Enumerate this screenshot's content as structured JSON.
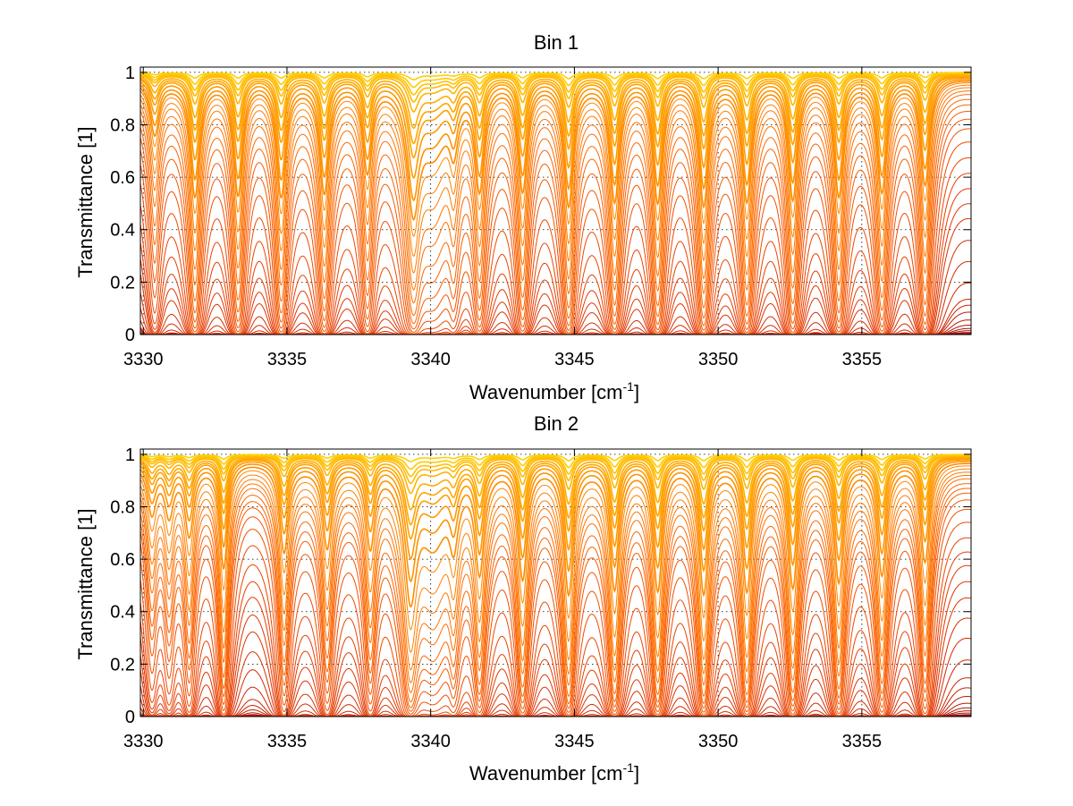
{
  "chart_data": [
    {
      "type": "line",
      "title": "Bin 1",
      "xlabel": "Wavenumber [cm",
      "xlabel_sup": "-1",
      "xlabel_end": "]",
      "ylabel": "Transmittance [1]",
      "xlim": [
        3329.9,
        3358.8
      ],
      "ylim": [
        0,
        1.02
      ],
      "xticks": [
        3330,
        3335,
        3340,
        3345,
        3350,
        3355
      ],
      "xtick_labels": [
        "3330",
        "3335",
        "3340",
        "3345",
        "3350",
        "3355"
      ],
      "yticks": [
        0,
        0.2,
        0.4,
        0.6,
        0.8,
        1
      ],
      "ytick_labels": [
        "0",
        "0.2",
        "0.4",
        "0.6",
        "0.8",
        "1"
      ],
      "grid": true,
      "colormap": [
        "#8b0000",
        "#c81e00",
        "#e83c00",
        "#ff6a00",
        "#ff9a00",
        "#ffd000"
      ],
      "n_series": 40,
      "baseline_levels": [
        0.005,
        0.015,
        0.035,
        0.07,
        0.14,
        0.19,
        0.35,
        0.5,
        0.6,
        0.7,
        0.8,
        0.86,
        0.9,
        0.93,
        0.95,
        0.965,
        0.975,
        0.985,
        0.99,
        0.995,
        0.997,
        0.999
      ],
      "absorption_lines": [
        {
          "x": 3330.4,
          "depth": 0.35,
          "width": 0.18
        },
        {
          "x": 3331.8,
          "depth": 0.9,
          "width": 0.17
        },
        {
          "x": 3333.3,
          "depth": 0.9,
          "width": 0.17
        },
        {
          "x": 3334.8,
          "depth": 0.9,
          "width": 0.17
        },
        {
          "x": 3336.3,
          "depth": 0.85,
          "width": 0.17
        },
        {
          "x": 3337.8,
          "depth": 0.65,
          "width": 0.17
        },
        {
          "x": 3339.4,
          "depth": 1.0,
          "width": 0.22
        },
        {
          "x": 3340.1,
          "depth": 0.45,
          "width": 0.55
        },
        {
          "x": 3340.8,
          "depth": 0.35,
          "width": 0.17
        },
        {
          "x": 3341.7,
          "depth": 0.8,
          "width": 0.17
        },
        {
          "x": 3343.2,
          "depth": 0.85,
          "width": 0.17
        },
        {
          "x": 3344.8,
          "depth": 1.0,
          "width": 0.17
        },
        {
          "x": 3346.4,
          "depth": 0.95,
          "width": 0.17
        },
        {
          "x": 3347.9,
          "depth": 0.98,
          "width": 0.17
        },
        {
          "x": 3349.5,
          "depth": 1.0,
          "width": 0.17
        },
        {
          "x": 3351.0,
          "depth": 0.95,
          "width": 0.17
        },
        {
          "x": 3352.6,
          "depth": 0.95,
          "width": 0.17
        },
        {
          "x": 3354.2,
          "depth": 0.9,
          "width": 0.17
        },
        {
          "x": 3355.7,
          "depth": 0.85,
          "width": 0.17
        },
        {
          "x": 3357.2,
          "depth": 0.8,
          "width": 0.17
        }
      ]
    },
    {
      "type": "line",
      "title": "Bin 2",
      "xlabel": "Wavenumber [cm",
      "xlabel_sup": "-1",
      "xlabel_end": "]",
      "ylabel": "Transmittance [1]",
      "xlim": [
        3329.9,
        3358.8
      ],
      "ylim": [
        0,
        1.02
      ],
      "xticks": [
        3330,
        3335,
        3340,
        3345,
        3350,
        3355
      ],
      "xtick_labels": [
        "3330",
        "3335",
        "3340",
        "3345",
        "3350",
        "3355"
      ],
      "yticks": [
        0,
        0.2,
        0.4,
        0.6,
        0.8,
        1
      ],
      "ytick_labels": [
        "0",
        "0.2",
        "0.4",
        "0.6",
        "0.8",
        "1"
      ],
      "grid": true,
      "colormap": [
        "#8b0000",
        "#c81e00",
        "#e83c00",
        "#ff6a00",
        "#ff9a00",
        "#ffd000"
      ],
      "n_series": 40,
      "baseline_levels": [
        0.005,
        0.012,
        0.03,
        0.06,
        0.12,
        0.2,
        0.36,
        0.5,
        0.61,
        0.7,
        0.8,
        0.86,
        0.89,
        0.92,
        0.94,
        0.96,
        0.975,
        0.985,
        0.99,
        0.995,
        0.997,
        0.999
      ],
      "absorption_lines": [
        {
          "x": 3330.3,
          "depth": 0.3,
          "width": 0.18
        },
        {
          "x": 3330.9,
          "depth": 0.3,
          "width": 0.18
        },
        {
          "x": 3331.6,
          "depth": 0.45,
          "width": 0.17
        },
        {
          "x": 3332.8,
          "depth": 0.75,
          "width": 0.15
        },
        {
          "x": 3334.9,
          "depth": 0.6,
          "width": 0.17
        },
        {
          "x": 3336.4,
          "depth": 0.55,
          "width": 0.17
        },
        {
          "x": 3337.9,
          "depth": 0.55,
          "width": 0.17
        },
        {
          "x": 3339.3,
          "depth": 1.0,
          "width": 0.22
        },
        {
          "x": 3340.1,
          "depth": 0.5,
          "width": 0.55
        },
        {
          "x": 3340.8,
          "depth": 0.4,
          "width": 0.17
        },
        {
          "x": 3341.7,
          "depth": 0.75,
          "width": 0.17
        },
        {
          "x": 3343.2,
          "depth": 0.85,
          "width": 0.17
        },
        {
          "x": 3344.8,
          "depth": 1.0,
          "width": 0.17
        },
        {
          "x": 3346.4,
          "depth": 0.95,
          "width": 0.17
        },
        {
          "x": 3347.9,
          "depth": 0.98,
          "width": 0.17
        },
        {
          "x": 3349.5,
          "depth": 1.0,
          "width": 0.17
        },
        {
          "x": 3351.0,
          "depth": 0.97,
          "width": 0.17
        },
        {
          "x": 3352.6,
          "depth": 0.95,
          "width": 0.17
        },
        {
          "x": 3354.2,
          "depth": 0.88,
          "width": 0.17
        },
        {
          "x": 3355.7,
          "depth": 0.8,
          "width": 0.17
        },
        {
          "x": 3357.2,
          "depth": 0.7,
          "width": 0.17
        }
      ]
    }
  ]
}
